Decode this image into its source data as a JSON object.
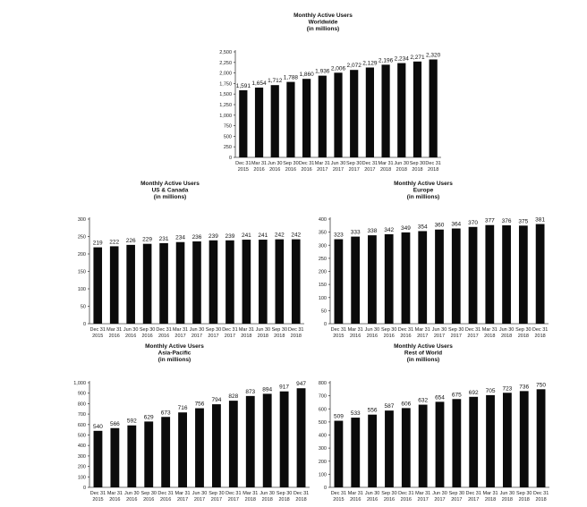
{
  "chart_data": [
    {
      "type": "bar",
      "title": [
        "Monthly Active Users",
        "Worldwide",
        "(in millions)"
      ],
      "categories": [
        [
          "Dec 31",
          "2015"
        ],
        [
          "Mar 31",
          "2016"
        ],
        [
          "Jun 30",
          "2016"
        ],
        [
          "Sep 30",
          "2016"
        ],
        [
          "Dec 31",
          "2016"
        ],
        [
          "Mar 31",
          "2017"
        ],
        [
          "Jun 30",
          "2017"
        ],
        [
          "Sep 30",
          "2017"
        ],
        [
          "Dec 31",
          "2017"
        ],
        [
          "Mar 31",
          "2018"
        ],
        [
          "Jun 30",
          "2018"
        ],
        [
          "Sep 30",
          "2018"
        ],
        [
          "Dec 31",
          "2018"
        ]
      ],
      "values": [
        1591,
        1654,
        1712,
        1788,
        1860,
        1936,
        2006,
        2072,
        2129,
        2196,
        2234,
        2271,
        2320
      ],
      "value_labels": [
        "1,591",
        "1,654",
        "1,712",
        "1,788",
        "1,860",
        "1,936",
        "2,006",
        "2,072",
        "2,129",
        "2,196",
        "2,234",
        "2,271",
        "2,320"
      ],
      "ylim": [
        0,
        2500
      ],
      "yticks": [
        "0",
        "250",
        "500",
        "750",
        "1,000",
        "1,250",
        "1,500",
        "1,750",
        "2,000",
        "2,250",
        "2,500"
      ]
    },
    {
      "type": "bar",
      "title": [
        "Monthly Active Users",
        "US & Canada",
        "(in millions)"
      ],
      "categories": [
        [
          "Dec 31",
          "2015"
        ],
        [
          "Mar 31",
          "2016"
        ],
        [
          "Jun 30",
          "2016"
        ],
        [
          "Sep 30",
          "2016"
        ],
        [
          "Dec 31",
          "2016"
        ],
        [
          "Mar 31",
          "2017"
        ],
        [
          "Jun 30",
          "2017"
        ],
        [
          "Sep 30",
          "2017"
        ],
        [
          "Dec 31",
          "2017"
        ],
        [
          "Mar 31",
          "2018"
        ],
        [
          "Jun 30",
          "2018"
        ],
        [
          "Sep 30",
          "2018"
        ],
        [
          "Dec 31",
          "2018"
        ]
      ],
      "values": [
        219,
        222,
        226,
        229,
        231,
        234,
        236,
        239,
        239,
        241,
        241,
        242,
        242
      ],
      "value_labels": [
        "219",
        "222",
        "226",
        "229",
        "231",
        "234",
        "236",
        "239",
        "239",
        "241",
        "241",
        "242",
        "242"
      ],
      "ylim": [
        0,
        300
      ],
      "yticks": [
        "0",
        "50",
        "100",
        "150",
        "200",
        "250",
        "300"
      ]
    },
    {
      "type": "bar",
      "title": [
        "Monthly Active Users",
        "Europe",
        "(in millions)"
      ],
      "categories": [
        [
          "Dec 31",
          "2015"
        ],
        [
          "Mar 31",
          "2016"
        ],
        [
          "Jun 30",
          "2016"
        ],
        [
          "Sep 30",
          "2016"
        ],
        [
          "Dec 31",
          "2016"
        ],
        [
          "Mar 31",
          "2017"
        ],
        [
          "Jun 30",
          "2017"
        ],
        [
          "Sep 30",
          "2017"
        ],
        [
          "Dec 31",
          "2017"
        ],
        [
          "Mar 31",
          "2018"
        ],
        [
          "Jun 30",
          "2018"
        ],
        [
          "Sep 30",
          "2018"
        ],
        [
          "Dec 31",
          "2018"
        ]
      ],
      "values": [
        323,
        333,
        338,
        342,
        349,
        354,
        360,
        364,
        370,
        377,
        376,
        375,
        381
      ],
      "value_labels": [
        "323",
        "333",
        "338",
        "342",
        "349",
        "354",
        "360",
        "364",
        "370",
        "377",
        "376",
        "375",
        "381"
      ],
      "ylim": [
        0,
        400
      ],
      "yticks": [
        "0",
        "50",
        "100",
        "150",
        "200",
        "250",
        "300",
        "350",
        "400"
      ]
    },
    {
      "type": "bar",
      "title": [
        "Monthly Active Users",
        "Asia-Pacific",
        "(in millions)"
      ],
      "categories": [
        [
          "Dec 31",
          "2015"
        ],
        [
          "Mar 31",
          "2016"
        ],
        [
          "Jun 30",
          "2016"
        ],
        [
          "Sep 30",
          "2016"
        ],
        [
          "Dec 31",
          "2016"
        ],
        [
          "Mar 31",
          "2017"
        ],
        [
          "Jun 30",
          "2017"
        ],
        [
          "Sep 30",
          "2017"
        ],
        [
          "Dec 31",
          "2017"
        ],
        [
          "Mar 31",
          "2018"
        ],
        [
          "Jun 30",
          "2018"
        ],
        [
          "Sep 30",
          "2018"
        ],
        [
          "Dec 31",
          "2018"
        ]
      ],
      "values": [
        540,
        566,
        592,
        629,
        673,
        716,
        756,
        794,
        828,
        873,
        894,
        917,
        947
      ],
      "value_labels": [
        "540",
        "566",
        "592",
        "629",
        "673",
        "716",
        "756",
        "794",
        "828",
        "873",
        "894",
        "917",
        "947"
      ],
      "ylim": [
        0,
        1000
      ],
      "yticks": [
        "0",
        "100",
        "200",
        "300",
        "400",
        "500",
        "600",
        "700",
        "800",
        "900",
        "1,000"
      ]
    },
    {
      "type": "bar",
      "title": [
        "Monthly Active Users",
        "Rest of World",
        "(in millions)"
      ],
      "categories": [
        [
          "Dec 31",
          "2015"
        ],
        [
          "Mar 31",
          "2016"
        ],
        [
          "Jun 30",
          "2016"
        ],
        [
          "Sep 30",
          "2016"
        ],
        [
          "Dec 31",
          "2016"
        ],
        [
          "Mar 31",
          "2017"
        ],
        [
          "Jun 30",
          "2017"
        ],
        [
          "Sep 30",
          "2017"
        ],
        [
          "Dec 31",
          "2017"
        ],
        [
          "Mar 31",
          "2018"
        ],
        [
          "Jun 30",
          "2018"
        ],
        [
          "Sep 30",
          "2018"
        ],
        [
          "Dec 31",
          "2018"
        ]
      ],
      "values": [
        509,
        533,
        556,
        587,
        606,
        632,
        654,
        675,
        692,
        705,
        723,
        736,
        750
      ],
      "value_labels": [
        "509",
        "533",
        "556",
        "587",
        "606",
        "632",
        "654",
        "675",
        "692",
        "705",
        "723",
        "736",
        "750"
      ],
      "ylim": [
        0,
        800
      ],
      "yticks": [
        "0",
        "100",
        "200",
        "300",
        "400",
        "500",
        "600",
        "700",
        "800"
      ]
    }
  ],
  "colors": {
    "bar": "#0b0b0b",
    "axis": "#444444",
    "text": "#111111"
  }
}
